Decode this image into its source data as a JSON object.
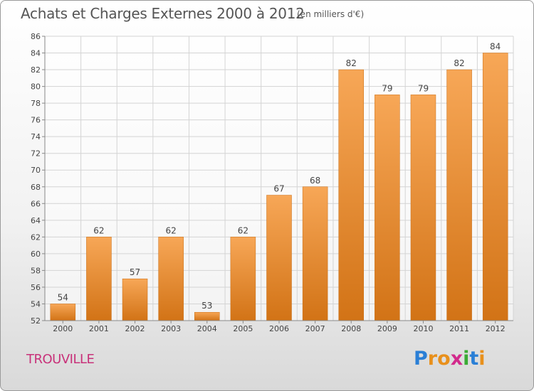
{
  "header": {
    "title": "Achats et Charges Externes 2000 à 2012",
    "subtitle": "(en milliers d'€)"
  },
  "commune": "TROUVILLE",
  "logo": {
    "text": "Proxiti",
    "letters": [
      {
        "ch": "P",
        "color": "#2a7fd6"
      },
      {
        "ch": "r",
        "color": "#e8901c"
      },
      {
        "ch": "o",
        "color": "#e8901c"
      },
      {
        "ch": "x",
        "color": "#d22a8c"
      },
      {
        "ch": "i",
        "color": "#3aaa35"
      },
      {
        "ch": "t",
        "color": "#2a7fd6"
      },
      {
        "ch": "i",
        "color": "#e8901c"
      }
    ]
  },
  "colors": {
    "bar_top": "#f7a757",
    "bar_bottom": "#d27316",
    "grid": "#d4d4d4",
    "axis": "#888888",
    "text": "#444444"
  },
  "chart_data": {
    "type": "bar",
    "categories": [
      "2000",
      "2001",
      "2002",
      "2003",
      "2004",
      "2005",
      "2006",
      "2007",
      "2008",
      "2009",
      "2010",
      "2011",
      "2012"
    ],
    "values": [
      54,
      62,
      57,
      62,
      53,
      62,
      67,
      68,
      82,
      79,
      79,
      82,
      84
    ],
    "title": "Achats et Charges Externes 2000 à 2012",
    "ylim": [
      52,
      86
    ],
    "yticks": [
      52,
      54,
      56,
      58,
      60,
      62,
      64,
      66,
      68,
      70,
      72,
      74,
      76,
      78,
      80,
      82,
      84,
      86
    ],
    "grid": true,
    "data_labels": true
  }
}
